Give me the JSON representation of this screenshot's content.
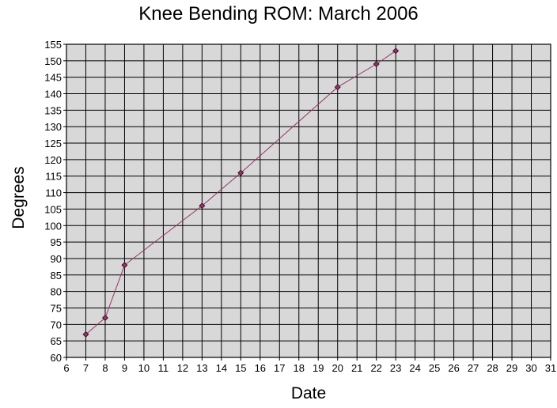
{
  "chart_data": {
    "type": "line",
    "title": "Knee Bending ROM: March 2006",
    "xlabel": "Date",
    "ylabel": "Degrees",
    "xlim": [
      6,
      31
    ],
    "ylim": [
      60,
      155
    ],
    "x_ticks": [
      6,
      7,
      8,
      9,
      10,
      11,
      12,
      13,
      14,
      15,
      16,
      17,
      18,
      19,
      20,
      21,
      22,
      23,
      24,
      25,
      26,
      27,
      28,
      29,
      30,
      31
    ],
    "y_ticks": [
      60,
      65,
      70,
      75,
      80,
      85,
      90,
      95,
      100,
      105,
      110,
      115,
      120,
      125,
      130,
      135,
      140,
      145,
      150,
      155
    ],
    "grid": true,
    "legend": "none",
    "series": [
      {
        "x": [
          7,
          8,
          9,
          13,
          15,
          20,
          22,
          23
        ],
        "y": [
          67,
          72,
          88,
          106,
          116,
          142,
          149,
          153
        ]
      }
    ],
    "colors": {
      "plot_background": "#d8d8d8",
      "gridline": "#000000",
      "line": "#993366",
      "marker_fill": "#993366",
      "marker_stroke": "#3f0f2a"
    }
  }
}
